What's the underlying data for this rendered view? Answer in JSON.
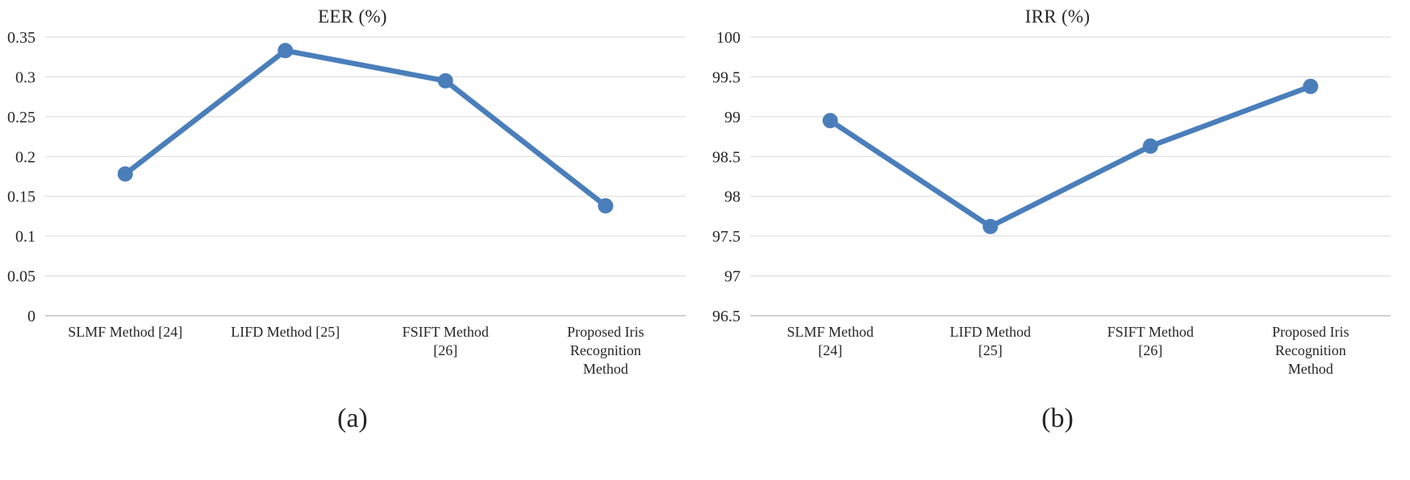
{
  "chart_data": [
    {
      "type": "line",
      "title": "EER (%)",
      "caption": "(a)",
      "categories": [
        "SLMF Method [24]",
        "LIFD Method [25]",
        "FSIFT Method [26]",
        "Proposed Iris Recognition Method"
      ],
      "category_lines": [
        [
          "SLMF Method [24]"
        ],
        [
          "LIFD Method [25]"
        ],
        [
          "FSIFT Method",
          "[26]"
        ],
        [
          "Proposed Iris",
          "Recognition",
          "Method"
        ]
      ],
      "values": [
        0.178,
        0.333,
        0.295,
        0.138
      ],
      "ylim": [
        0,
        0.35
      ],
      "yticks": [
        0,
        0.05,
        0.1,
        0.15,
        0.2,
        0.25,
        0.3,
        0.35
      ],
      "ytick_labels": [
        "0",
        "0.05",
        "0.1",
        "0.15",
        "0.2",
        "0.25",
        "0.3",
        "0.35"
      ],
      "grid": true,
      "legend": "none",
      "line_color": "#4A7EBB",
      "grid_color": "#D9D9D9",
      "axis_color": "#BFBFBF",
      "text_color": "#262626"
    },
    {
      "type": "line",
      "title": "IRR (%)",
      "caption": "(b)",
      "categories": [
        "SLMF Method [24]",
        "LIFD Method [25]",
        "FSIFT Method [26]",
        "Proposed Iris Recognition Method"
      ],
      "category_lines": [
        [
          "SLMF Method",
          "[24]"
        ],
        [
          "LIFD Method",
          "[25]"
        ],
        [
          "FSIFT Method",
          "[26]"
        ],
        [
          "Proposed Iris",
          "Recognition",
          "Method"
        ]
      ],
      "values": [
        98.95,
        97.62,
        98.63,
        99.38
      ],
      "ylim": [
        96.5,
        100
      ],
      "yticks": [
        96.5,
        97,
        97.5,
        98,
        98.5,
        99,
        99.5,
        100
      ],
      "ytick_labels": [
        "96.5",
        "97",
        "97.5",
        "98",
        "98.5",
        "99",
        "99.5",
        "100"
      ],
      "grid": true,
      "legend": "none",
      "line_color": "#4A7EBB",
      "grid_color": "#D9D9D9",
      "axis_color": "#BFBFBF",
      "text_color": "#262626"
    }
  ]
}
